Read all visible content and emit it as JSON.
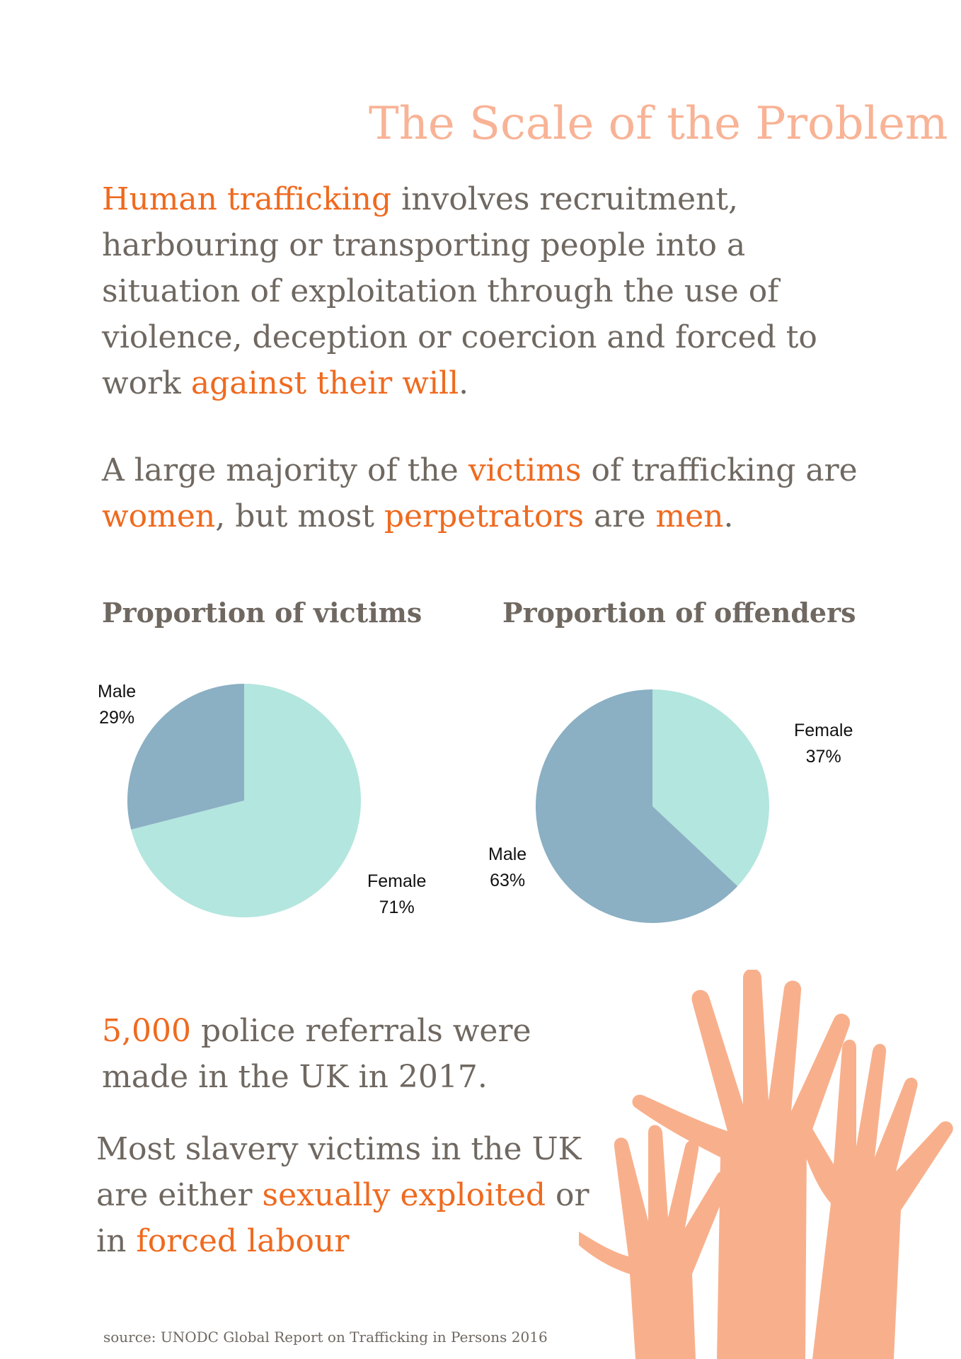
{
  "title": "The Scale of the Problem",
  "intro": {
    "hl1": "Human trafficking",
    "t1": " involves recruitment, harbouring or transporting people into a situation of exploitation through the use of violence, deception or coercion and forced to work ",
    "hl2": "against their will",
    "t2": "."
  },
  "majority": {
    "t1": "A large majority of the ",
    "hl1": "victims",
    "t2": " of trafficking are ",
    "hl2": "women",
    "t3": ", but most ",
    "hl3": "perpetrators",
    "t4": " are ",
    "hl4": "men",
    "t5": "."
  },
  "referrals": {
    "hl1": "5,000",
    "t1": " police referrals were made in the UK in 2017."
  },
  "slavery": {
    "t1": "Most slavery victims in the UK are either ",
    "hl1": "sexually exploited",
    "t2": " or in ",
    "hl2": "forced labour"
  },
  "source": "source: UNODC Global Report on Trafficking in Persons 2016",
  "colors": {
    "accent": "#ef6a1f",
    "title": "#f8b396",
    "text": "#6f6861",
    "male": "#8bafc3",
    "female": "#b3e6de",
    "hands": "#f8b08c"
  },
  "decoration": {
    "icon": "raised-hands-illustration"
  },
  "chart_data": [
    {
      "type": "pie",
      "title": "Proportion of victims",
      "slices": [
        {
          "label": "Female",
          "value": 71,
          "value_label": "71%",
          "color": "#b3e6de"
        },
        {
          "label": "Male",
          "value": 29,
          "value_label": "29%",
          "color": "#8bafc3"
        }
      ]
    },
    {
      "type": "pie",
      "title": "Proportion of offenders",
      "slices": [
        {
          "label": "Female",
          "value": 37,
          "value_label": "37%",
          "color": "#b3e6de"
        },
        {
          "label": "Male",
          "value": 63,
          "value_label": "63%",
          "color": "#8bafc3"
        }
      ]
    }
  ]
}
